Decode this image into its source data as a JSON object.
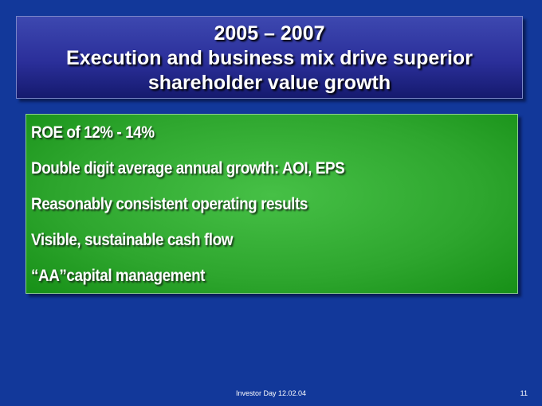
{
  "header": {
    "title_lines": [
      "2005 – 2007",
      "Execution and business mix drive superior",
      "shareholder value growth"
    ]
  },
  "bullets": [
    "ROE of 12% - 14%",
    "Double digit average annual growth:  AOI, EPS",
    "Reasonably consistent operating results",
    "Visible, sustainable cash flow",
    "“AA”capital management"
  ],
  "footer": {
    "text": "Investor Day 12.02.04",
    "page": "11"
  }
}
